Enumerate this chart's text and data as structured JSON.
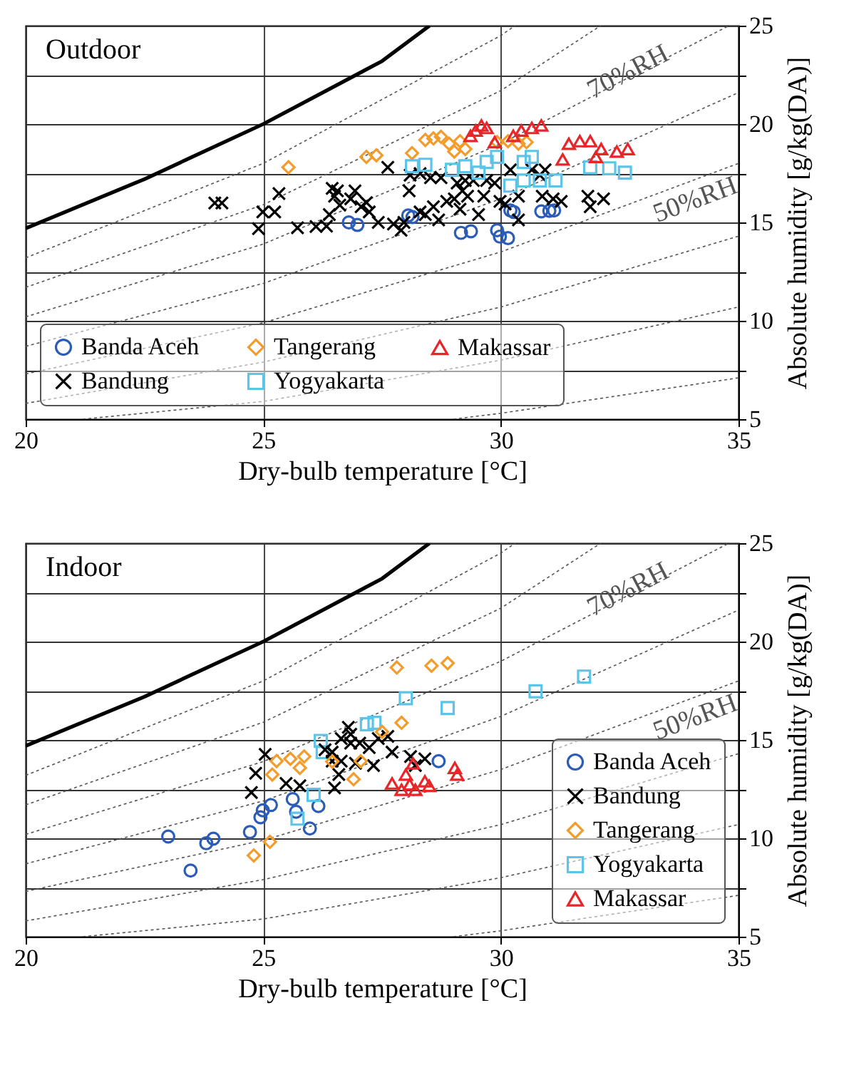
{
  "chart_data": [
    {
      "type": "scatter",
      "title": "Outdoor",
      "xlabel": "Dry-bulb temperature [°C]",
      "ylabel": "Absolute humidity [g/kg(DA)]",
      "xlim": [
        20,
        35
      ],
      "ylim": [
        5,
        25
      ],
      "xticks": [
        20,
        25,
        30,
        35
      ],
      "yticks": [
        5,
        {
          "value": 7.5,
          "label": null
        },
        10,
        {
          "value": 12.5,
          "label": null
        },
        15,
        {
          "value": 17.5,
          "label": null
        },
        20,
        {
          "value": 22.5,
          "label": null
        },
        25
      ],
      "grid": true,
      "legend": "bottom",
      "series": [
        {
          "type": "line",
          "color": "#000000",
          "line_style": "solid",
          "x": [
            20,
            22.5,
            25,
            27.5,
            28.5
          ],
          "values": [
            14.7,
            17.2,
            20.0,
            23.2,
            25.0
          ]
        },
        {
          "type": "line",
          "color": "#555555",
          "line_style": "dotted",
          "x": [
            20,
            25,
            30,
            30.3
          ],
          "values": [
            13.2,
            18.0,
            24.5,
            25.0
          ]
        },
        {
          "type": "line",
          "color": "#555555",
          "line_style": "dotted",
          "x": [
            20,
            25,
            30,
            32.1
          ],
          "values": [
            11.7,
            15.9,
            21.7,
            25.0
          ]
        },
        {
          "type": "line",
          "name": "70%RH",
          "color": "#555555",
          "line_style": "dotted",
          "x": [
            20,
            25,
            30,
            34.8
          ],
          "values": [
            10.2,
            13.9,
            19.0,
            25.0
          ]
        },
        {
          "type": "line",
          "color": "#555555",
          "line_style": "dotted",
          "x": [
            20,
            25,
            30,
            35
          ],
          "values": [
            8.7,
            11.9,
            16.2,
            21.6
          ]
        },
        {
          "type": "line",
          "name": "50%RH",
          "color": "#555555",
          "line_style": "dotted",
          "x": [
            20,
            25,
            30,
            35
          ],
          "values": [
            7.3,
            9.9,
            13.5,
            18.0
          ]
        },
        {
          "type": "line",
          "color": "#555555",
          "line_style": "dotted",
          "x": [
            20,
            25,
            30,
            35
          ],
          "values": [
            5.8,
            7.9,
            10.7,
            14.3
          ]
        },
        {
          "type": "line",
          "color": "#555555",
          "line_style": "dotted",
          "x": [
            21.2,
            25,
            30,
            35
          ],
          "values": [
            5.0,
            5.9,
            8.0,
            10.7
          ]
        },
        {
          "type": "line",
          "color": "#555555",
          "line_style": "dotted",
          "x": [
            29,
            30,
            35
          ],
          "values": [
            5.0,
            5.3,
            7.1
          ]
        },
        {
          "type": "scatter",
          "name": "Banda Aceh",
          "color": "#2b5cb8",
          "marker": "circle",
          "x": [
            26.8,
            26.98,
            28.05,
            28.14,
            29.16,
            29.37,
            29.92,
            29.98,
            30.15,
            30.2,
            30.27,
            30.85,
            31.02,
            31.12
          ],
          "values": [
            15.0,
            14.87,
            15.35,
            15.27,
            14.47,
            14.55,
            14.6,
            14.28,
            14.2,
            15.61,
            15.53,
            15.56,
            15.59,
            15.61
          ]
        },
        {
          "type": "scatter",
          "name": "Bandung",
          "color": "#000000",
          "marker": "cross",
          "x": [
            23.98,
            24.13,
            24.9,
            24.99,
            25.24,
            25.33,
            25.72,
            26.11,
            26.33,
            26.39,
            26.45,
            26.5,
            26.56,
            26.61,
            26.84,
            26.93,
            27.06,
            27.17,
            27.23,
            27.42,
            27.62,
            27.74,
            27.9,
            27.96,
            28.07,
            28.09,
            28.3,
            28.3,
            28.41,
            28.52,
            28.58,
            28.69,
            28.74,
            28.86,
            29.02,
            29.08,
            29.14,
            29.19,
            29.25,
            29.3,
            29.42,
            29.53,
            29.64,
            29.7,
            29.87,
            29.98,
            30.09,
            30.2,
            30.37,
            30.37,
            30.65,
            30.82,
            30.93,
            30.87,
            31.1,
            31.27,
            31.83,
            31.88,
            32.16
          ],
          "values": [
            15.99,
            15.99,
            14.68,
            15.53,
            15.53,
            16.47,
            14.73,
            14.79,
            14.81,
            15.4,
            16.73,
            16.33,
            16.6,
            15.88,
            16.2,
            16.6,
            15.8,
            16.01,
            15.53,
            15.0,
            17.8,
            14.92,
            14.6,
            15.0,
            16.6,
            17.4,
            17.48,
            15.53,
            15.4,
            17.27,
            15.8,
            15.13,
            17.27,
            16.07,
            16.2,
            17.0,
            15.67,
            16.6,
            17.13,
            16.33,
            17.13,
            15.4,
            16.33,
            17.13,
            17.0,
            16.07,
            15.93,
            17.67,
            16.33,
            15.13,
            17.67,
            17.4,
            17.67,
            16.33,
            16.2,
            16.07,
            16.33,
            15.8,
            16.2
          ]
        },
        {
          "type": "scatter",
          "name": "Tangerang",
          "color": "#f39c2c",
          "marker": "diamond",
          "x": [
            25.53,
            27.17,
            27.38,
            28.13,
            28.41,
            28.58,
            28.74,
            28.91,
            29.02,
            29.14,
            29.25,
            29.92,
            30.15,
            30.37,
            30.54
          ],
          "values": [
            17.8,
            18.33,
            18.41,
            18.52,
            19.19,
            19.27,
            19.35,
            19.0,
            18.6,
            19.13,
            18.73,
            19.08,
            19.13,
            19.0,
            19.08
          ]
        },
        {
          "type": "scatter",
          "name": "Yogyakarta",
          "color": "#5bc4e8",
          "marker": "square",
          "x": [
            28.13,
            28.41,
            28.97,
            29.25,
            29.53,
            29.7,
            29.92,
            30.2,
            30.48,
            30.65,
            30.82,
            31.15,
            31.88,
            32.28,
            32.61,
            30.48
          ],
          "values": [
            17.85,
            17.93,
            17.67,
            17.85,
            17.53,
            18.07,
            18.33,
            16.87,
            17.13,
            18.33,
            17.13,
            17.13,
            17.8,
            17.75,
            17.53,
            18.07
          ]
        },
        {
          "type": "scatter",
          "name": "Makassar",
          "color": "#e8262a",
          "marker": "triangle",
          "x": [
            29.36,
            29.47,
            29.59,
            29.7,
            29.87,
            30.26,
            30.43,
            30.65,
            30.85,
            31.3,
            31.43,
            31.66,
            31.88,
            32.0,
            32.11,
            32.44,
            32.67
          ],
          "values": [
            19.4,
            19.67,
            19.93,
            19.8,
            19.08,
            19.4,
            19.67,
            19.8,
            19.93,
            18.2,
            19.0,
            19.13,
            19.13,
            18.33,
            18.73,
            18.6,
            18.73
          ]
        }
      ]
    },
    {
      "type": "scatter",
      "title": "Indoor",
      "xlabel": "Dry-bulb temperature [°C]",
      "ylabel": "Absolute humidity [g/kg(DA)]",
      "xlim": [
        20,
        35
      ],
      "ylim": [
        5,
        25
      ],
      "xticks": [
        20,
        25,
        30,
        35
      ],
      "yticks": [
        5,
        {
          "value": 7.5,
          "label": null
        },
        10,
        {
          "value": 12.5,
          "label": null
        },
        15,
        {
          "value": 17.5,
          "label": null
        },
        20,
        {
          "value": 22.5,
          "label": null
        },
        25
      ],
      "grid": true,
      "legend": "bottom right",
      "series": [
        {
          "type": "line",
          "color": "#000000",
          "line_style": "solid",
          "x": [
            20,
            22.5,
            25,
            27.5,
            28.5
          ],
          "values": [
            14.7,
            17.2,
            20.0,
            23.2,
            25.0
          ]
        },
        {
          "type": "line",
          "color": "#555555",
          "line_style": "dotted",
          "x": [
            20,
            25,
            30,
            30.3
          ],
          "values": [
            13.2,
            18.0,
            24.5,
            25.0
          ]
        },
        {
          "type": "line",
          "color": "#555555",
          "line_style": "dotted",
          "x": [
            20,
            25,
            30,
            32.1
          ],
          "values": [
            11.7,
            15.9,
            21.7,
            25.0
          ]
        },
        {
          "type": "line",
          "name": "70%RH",
          "color": "#555555",
          "line_style": "dotted",
          "x": [
            20,
            25,
            30,
            34.8
          ],
          "values": [
            10.2,
            13.9,
            19.0,
            25.0
          ]
        },
        {
          "type": "line",
          "color": "#555555",
          "line_style": "dotted",
          "x": [
            20,
            25,
            30,
            35
          ],
          "values": [
            8.7,
            11.9,
            16.2,
            21.6
          ]
        },
        {
          "type": "line",
          "name": "50%RH",
          "color": "#555555",
          "line_style": "dotted",
          "x": [
            20,
            25,
            30,
            35
          ],
          "values": [
            7.3,
            9.9,
            13.5,
            18.0
          ]
        },
        {
          "type": "line",
          "color": "#555555",
          "line_style": "dotted",
          "x": [
            20,
            25,
            30,
            35
          ],
          "values": [
            5.8,
            7.9,
            10.7,
            14.3
          ]
        },
        {
          "type": "line",
          "color": "#555555",
          "line_style": "dotted",
          "x": [
            21.2,
            25,
            30,
            35
          ],
          "values": [
            5.0,
            5.9,
            8.0,
            10.7
          ]
        },
        {
          "type": "line",
          "color": "#555555",
          "line_style": "dotted",
          "x": [
            29,
            30,
            35
          ],
          "values": [
            5.0,
            5.3,
            7.1
          ]
        },
        {
          "type": "scatter",
          "name": "Banda Aceh",
          "color": "#2b5cb8",
          "marker": "circle",
          "x": [
            23.0,
            23.47,
            23.8,
            23.95,
            24.72,
            24.94,
            24.99,
            25.16,
            25.62,
            25.69,
            25.98,
            26.16,
            28.69
          ],
          "values": [
            10.09,
            8.36,
            9.75,
            9.98,
            10.32,
            11.07,
            11.42,
            11.69,
            11.99,
            11.35,
            10.5,
            11.64,
            13.92
          ]
        },
        {
          "type": "scatter",
          "name": "Yogyakarta",
          "color": "#5bc4e8",
          "marker": "square",
          "x": [
            28.0,
            28.88,
            27.18,
            27.34,
            30.73,
            31.75,
            25.72,
            26.21,
            26.25,
            26.06
          ],
          "values": [
            17.12,
            16.62,
            15.8,
            15.87,
            17.47,
            18.22,
            11.0,
            14.95,
            14.38,
            12.21
          ]
        },
        {
          "type": "scatter",
          "name": "Bandung",
          "color": "#000000",
          "marker": "cross",
          "x": [
            24.75,
            24.84,
            25.04,
            25.48,
            25.77,
            26.3,
            26.45,
            26.59,
            26.79,
            26.84,
            26.94,
            26.5,
            26.45,
            26.64,
            26.84,
            27.03,
            27.23,
            27.42,
            27.62,
            27.71,
            28.1,
            28.4,
            26.64,
            27.32,
            28.2
          ],
          "values": [
            12.33,
            13.31,
            14.27,
            12.79,
            12.67,
            14.5,
            13.92,
            13.24,
            15.64,
            14.84,
            13.81,
            12.56,
            14.38,
            15.07,
            15.29,
            14.84,
            14.61,
            15.07,
            15.18,
            14.38,
            14.16,
            14.04,
            13.92,
            13.7,
            13.7
          ]
        },
        {
          "type": "scatter",
          "name": "Makassar",
          "color": "#e8262a",
          "marker": "triangle",
          "x": [
            28.15,
            28.0,
            27.71,
            28.4,
            29.03,
            29.08,
            27.91,
            28.2,
            28.49,
            28.08
          ],
          "values": [
            13.81,
            13.24,
            12.79,
            12.9,
            13.58,
            13.24,
            12.47,
            12.47,
            12.67,
            12.74
          ]
        },
        {
          "type": "scatter",
          "name": "Tangerang",
          "color": "#f39c2c",
          "marker": "diamond",
          "x": [
            27.81,
            28.54,
            28.88,
            27.91,
            27.5,
            27.05,
            24.8,
            25.14,
            25.28,
            25.57,
            25.86,
            25.19,
            25.77,
            26.45,
            26.9
          ],
          "values": [
            18.68,
            18.77,
            18.9,
            15.87,
            15.41,
            13.92,
            9.13,
            9.82,
            13.93,
            14.04,
            14.16,
            13.24,
            13.58,
            13.9,
            13.0
          ]
        }
      ]
    }
  ]
}
